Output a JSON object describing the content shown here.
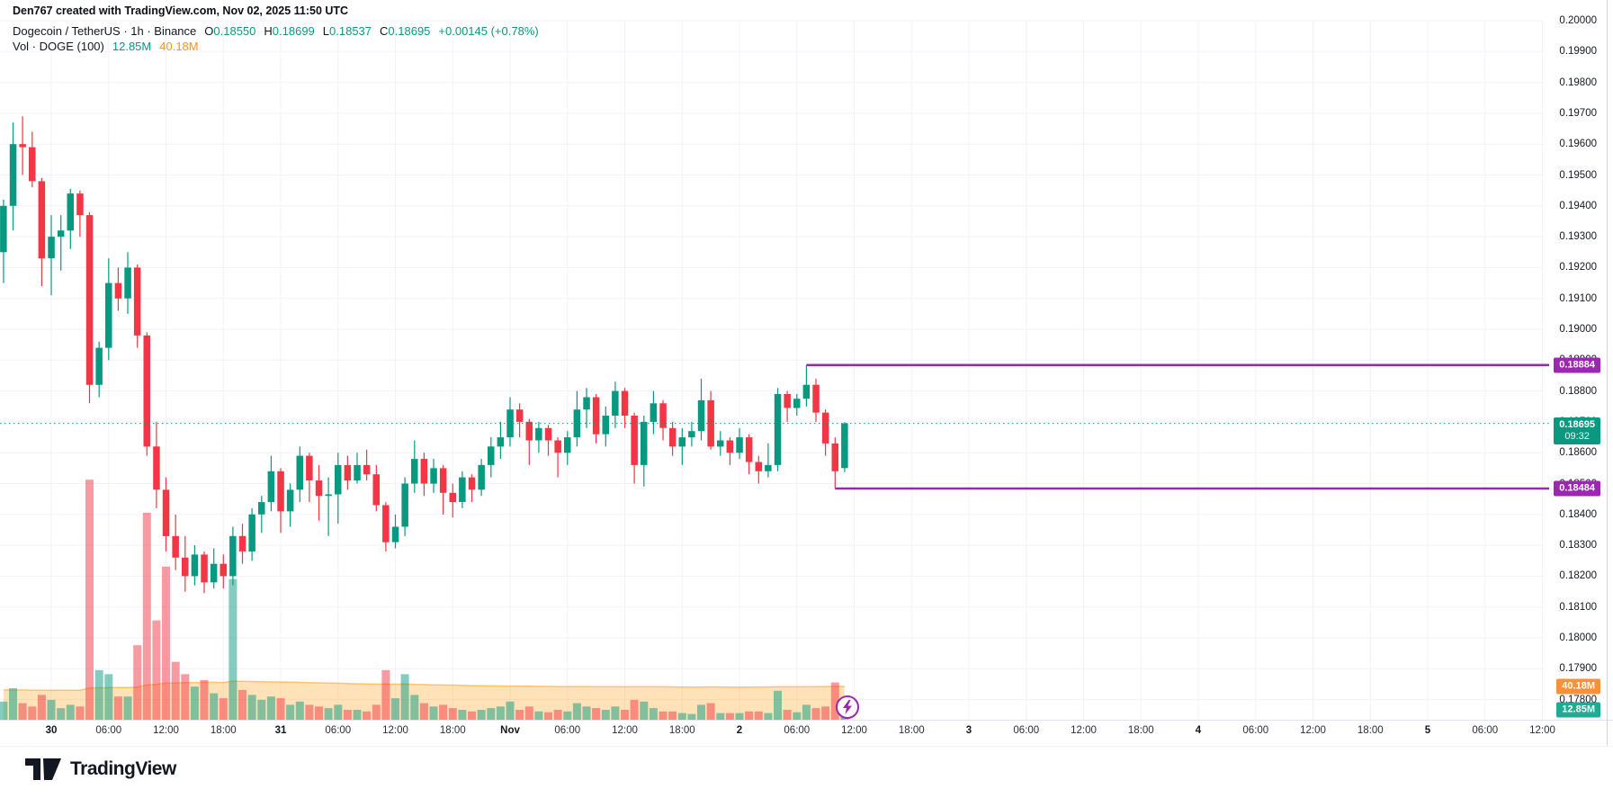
{
  "attribution": "Den767 created with TradingView.com, Nov 02, 2025 11:50 UTC",
  "legend": {
    "symbol": "Dogecoin / TetherUS · 1h · Binance",
    "ohlc": {
      "o_label": "O",
      "o": "0.18550",
      "h_label": "H",
      "h": "0.18699",
      "l_label": "L",
      "l": "0.18537",
      "c_label": "C",
      "c": "0.18695",
      "change": "+0.00145 (+0.78%)"
    },
    "volume_row": {
      "label": "Vol · DOGE (100)",
      "vol": "12.85M",
      "ma": "40.18M"
    }
  },
  "overlays": {
    "upper_label": "0.18884",
    "upper_price": 0.18884,
    "upper_from_candle": 84,
    "lower_label": "0.18484",
    "lower_price": 0.18484,
    "lower_from_candle": 87,
    "current_price_label": "0.18695",
    "countdown": "09:32",
    "vol_ma_label": "40.18M",
    "vol_label": "12.85M"
  },
  "logo": {
    "text": "TradingView"
  },
  "colors": {
    "up": "#089981",
    "down": "#F23645",
    "range_line": "#9c27b0",
    "vol_ma_fill": "rgba(255,152,0,0.28)",
    "vol_ma_edge": "rgba(255,152,0,0.5)",
    "vol_up": "rgba(8,153,129,0.5)",
    "vol_down": "rgba(242,54,69,0.5)",
    "grid": "#f0f3fa",
    "axis_line": "#e0e3eb",
    "current_line": "#089981"
  },
  "chart_data": {
    "type": "candlestick",
    "symbol": "Dogecoin / TetherUS",
    "exchange": "Binance",
    "interval": "1h",
    "title": "DOGE/USDT 1h candlestick chart with volume and MA(100)",
    "price_axis": {
      "ticks": [
        "0.20000",
        "0.19900",
        "0.19800",
        "0.19700",
        "0.19600",
        "0.19500",
        "0.19400",
        "0.19300",
        "0.19200",
        "0.19100",
        "0.19000",
        "0.18900",
        "0.18800",
        "0.18700",
        "0.18600",
        "0.18500",
        "0.18400",
        "0.18300",
        "0.18200",
        "0.18100",
        "0.18000",
        "0.17900",
        "0.17800"
      ],
      "min": 0.178,
      "max": 0.2
    },
    "time_axis": {
      "ticks": [
        {
          "label": "30",
          "major": true
        },
        {
          "label": "06:00",
          "major": false
        },
        {
          "label": "12:00",
          "major": false
        },
        {
          "label": "18:00",
          "major": false
        },
        {
          "label": "31",
          "major": true
        },
        {
          "label": "06:00",
          "major": false
        },
        {
          "label": "12:00",
          "major": false
        },
        {
          "label": "18:00",
          "major": false
        },
        {
          "label": "Nov",
          "major": true
        },
        {
          "label": "06:00",
          "major": false
        },
        {
          "label": "12:00",
          "major": false
        },
        {
          "label": "18:00",
          "major": false
        },
        {
          "label": "2",
          "major": true
        },
        {
          "label": "06:00",
          "major": false
        },
        {
          "label": "12:00",
          "major": false
        },
        {
          "label": "18:00",
          "major": false
        },
        {
          "label": "3",
          "major": true
        },
        {
          "label": "06:00",
          "major": false
        },
        {
          "label": "12:00",
          "major": false
        },
        {
          "label": "18:00",
          "major": false
        },
        {
          "label": "4",
          "major": true
        },
        {
          "label": "06:00",
          "major": false
        },
        {
          "label": "12:00",
          "major": false
        },
        {
          "label": "18:00",
          "major": false
        },
        {
          "label": "5",
          "major": true
        },
        {
          "label": "06:00",
          "major": false
        },
        {
          "label": "12:00",
          "major": false
        }
      ]
    },
    "current": {
      "price": 0.18695,
      "countdown": "09:32",
      "volume_m": 12.85,
      "vol_ma_m": 40.18
    },
    "candles": {
      "columns": [
        "time",
        "open",
        "high",
        "low",
        "close",
        "volume_m"
      ],
      "rows": [
        [
          "Oct29 19:00",
          0.1925,
          0.1942,
          0.1915,
          0.194,
          22
        ],
        [
          "Oct29 20:00",
          0.194,
          0.1967,
          0.1932,
          0.196,
          38
        ],
        [
          "Oct29 21:00",
          0.196,
          0.1969,
          0.195,
          0.1959,
          20
        ],
        [
          "Oct29 22:00",
          0.1959,
          0.1964,
          0.1946,
          0.1948,
          16
        ],
        [
          "Oct29 23:00",
          0.1948,
          0.1949,
          0.1914,
          0.1923,
          30
        ],
        [
          "Oct30 00:00",
          0.1923,
          0.1937,
          0.1911,
          0.193,
          24
        ],
        [
          "Oct30 01:00",
          0.193,
          0.1937,
          0.1919,
          0.1932,
          14
        ],
        [
          "Oct30 02:00",
          0.1932,
          0.19455,
          0.1926,
          0.1944,
          18
        ],
        [
          "Oct30 03:00",
          0.1944,
          0.1945,
          0.193,
          0.1937,
          16
        ],
        [
          "Oct30 04:00",
          0.1937,
          0.1938,
          0.1876,
          0.1882,
          290
        ],
        [
          "Oct30 05:00",
          0.1882,
          0.1896,
          0.1878,
          0.1894,
          60
        ],
        [
          "Oct30 06:00",
          0.1894,
          0.1923,
          0.189,
          0.1915,
          55
        ],
        [
          "Oct30 07:00",
          0.1915,
          0.192,
          0.1906,
          0.191,
          28
        ],
        [
          "Oct30 08:00",
          0.191,
          0.1925,
          0.1905,
          0.192,
          28
        ],
        [
          "Oct30 09:00",
          0.192,
          0.1921,
          0.1894,
          0.1898,
          90
        ],
        [
          "Oct30 10:00",
          0.1898,
          0.1899,
          0.1859,
          0.1862,
          250
        ],
        [
          "Oct30 11:00",
          0.1862,
          0.187,
          0.1842,
          0.1848,
          120
        ],
        [
          "Oct30 12:00",
          0.1848,
          0.1852,
          0.1828,
          0.1833,
          185
        ],
        [
          "Oct30 13:00",
          0.1833,
          0.184,
          0.1822,
          0.1826,
          70
        ],
        [
          "Oct30 14:00",
          0.1826,
          0.1833,
          0.1815,
          0.182,
          55
        ],
        [
          "Oct30 15:00",
          0.182,
          0.183,
          0.1817,
          0.1827,
          40
        ],
        [
          "Oct30 16:00",
          0.1827,
          0.1828,
          0.18145,
          0.1818,
          48
        ],
        [
          "Oct30 17:00",
          0.1818,
          0.1829,
          0.1816,
          0.1824,
          32
        ],
        [
          "Oct30 18:00",
          0.1824,
          0.1827,
          0.1816,
          0.182,
          26
        ],
        [
          "Oct30 19:00",
          0.182,
          0.1836,
          0.1817,
          0.1833,
          170
        ],
        [
          "Oct30 20:00",
          0.1833,
          0.1837,
          0.1824,
          0.1828,
          36
        ],
        [
          "Oct30 21:00",
          0.1828,
          0.1842,
          0.1825,
          0.184,
          30
        ],
        [
          "Oct30 22:00",
          0.184,
          0.1846,
          0.1834,
          0.1844,
          24
        ],
        [
          "Oct30 23:00",
          0.1844,
          0.1859,
          0.1841,
          0.1854,
          28
        ],
        [
          "Oct31 00:00",
          0.1854,
          0.1855,
          0.1834,
          0.1841,
          26
        ],
        [
          "Oct31 01:00",
          0.1841,
          0.185,
          0.1836,
          0.1848,
          18
        ],
        [
          "Oct31 02:00",
          0.1848,
          0.1862,
          0.1844,
          0.1859,
          22
        ],
        [
          "Oct31 03:00",
          0.1859,
          0.186,
          0.1844,
          0.1851,
          18
        ],
        [
          "Oct31 04:00",
          0.1851,
          0.1856,
          0.1838,
          0.1846,
          16
        ],
        [
          "Oct31 05:00",
          0.1846,
          0.1852,
          0.1833,
          0.18465,
          14
        ],
        [
          "Oct31 06:00",
          0.18465,
          0.186,
          0.1837,
          0.1856,
          18
        ],
        [
          "Oct31 07:00",
          0.1856,
          0.1859,
          0.1848,
          0.1851,
          12
        ],
        [
          "Oct31 08:00",
          0.1851,
          0.186,
          0.185,
          0.1856,
          12
        ],
        [
          "Oct31 09:00",
          0.1856,
          0.1861,
          0.1851,
          0.1853,
          10
        ],
        [
          "Oct31 10:00",
          0.1853,
          0.1856,
          0.1841,
          0.1843,
          18
        ],
        [
          "Oct31 11:00",
          0.1843,
          0.1844,
          0.1828,
          0.1831,
          60
        ],
        [
          "Oct31 12:00",
          0.1831,
          0.184,
          0.1829,
          0.1836,
          26
        ],
        [
          "Oct31 13:00",
          0.1836,
          0.1852,
          0.1833,
          0.185,
          55
        ],
        [
          "Oct31 14:00",
          0.185,
          0.1864,
          0.1847,
          0.1858,
          30
        ],
        [
          "Oct31 15:00",
          0.1858,
          0.186,
          0.1846,
          0.185,
          20
        ],
        [
          "Oct31 16:00",
          0.185,
          0.1858,
          0.1847,
          0.1855,
          16
        ],
        [
          "Oct31 17:00",
          0.1855,
          0.1856,
          0.184,
          0.1847,
          18
        ],
        [
          "Oct31 18:00",
          0.1847,
          0.185,
          0.1839,
          0.1844,
          14
        ],
        [
          "Oct31 19:00",
          0.1844,
          0.1854,
          0.1842,
          0.1852,
          12
        ],
        [
          "Oct31 20:00",
          0.1852,
          0.1853,
          0.1844,
          0.1848,
          10
        ],
        [
          "Oct31 21:00",
          0.1848,
          0.1858,
          0.1846,
          0.1856,
          12
        ],
        [
          "Oct31 22:00",
          0.1856,
          0.1865,
          0.1852,
          0.1862,
          14
        ],
        [
          "Oct31 23:00",
          0.1862,
          0.187,
          0.1858,
          0.1865,
          16
        ],
        [
          "Nov01 00:00",
          0.1865,
          0.1878,
          0.1862,
          0.1874,
          22
        ],
        [
          "Nov01 01:00",
          0.1874,
          0.1876,
          0.1865,
          0.187,
          12
        ],
        [
          "Nov01 02:00",
          0.187,
          0.1871,
          0.1856,
          0.1864,
          16
        ],
        [
          "Nov01 03:00",
          0.1864,
          0.187,
          0.186,
          0.1868,
          10
        ],
        [
          "Nov01 04:00",
          0.1868,
          0.1869,
          0.1859,
          0.1864,
          9
        ],
        [
          "Nov01 05:00",
          0.1864,
          0.1865,
          0.1852,
          0.186,
          12
        ],
        [
          "Nov01 06:00",
          0.186,
          0.1867,
          0.1856,
          0.1865,
          10
        ],
        [
          "Nov01 07:00",
          0.1865,
          0.188,
          0.1862,
          0.1874,
          20
        ],
        [
          "Nov01 08:00",
          0.1874,
          0.1881,
          0.1868,
          0.1878,
          16
        ],
        [
          "Nov01 09:00",
          0.1878,
          0.1879,
          0.1863,
          0.1866,
          14
        ],
        [
          "Nov01 10:00",
          0.1866,
          0.1875,
          0.1862,
          0.1872,
          12
        ],
        [
          "Nov01 11:00",
          0.1872,
          0.1883,
          0.1868,
          0.188,
          16
        ],
        [
          "Nov01 12:00",
          0.188,
          0.1881,
          0.1868,
          0.1872,
          12
        ],
        [
          "Nov01 13:00",
          0.1872,
          0.1873,
          0.185,
          0.1856,
          24
        ],
        [
          "Nov01 14:00",
          0.1856,
          0.1872,
          0.1849,
          0.187,
          22
        ],
        [
          "Nov01 15:00",
          0.187,
          0.188,
          0.1866,
          0.1876,
          14
        ],
        [
          "Nov01 16:00",
          0.1876,
          0.1877,
          0.1864,
          0.1868,
          10
        ],
        [
          "Nov01 17:00",
          0.1868,
          0.187,
          0.1859,
          0.1862,
          10
        ],
        [
          "Nov01 18:00",
          0.1862,
          0.1868,
          0.1856,
          0.1865,
          8
        ],
        [
          "Nov01 19:00",
          0.1865,
          0.187,
          0.1862,
          0.1867,
          7
        ],
        [
          "Nov01 20:00",
          0.1867,
          0.1884,
          0.1864,
          0.1877,
          18
        ],
        [
          "Nov01 21:00",
          0.1877,
          0.188,
          0.1861,
          0.1862,
          20
        ],
        [
          "Nov01 22:00",
          0.1862,
          0.1867,
          0.1859,
          0.1864,
          8
        ],
        [
          "Nov01 23:00",
          0.1864,
          0.1865,
          0.1856,
          0.186,
          8
        ],
        [
          "Nov02 00:00",
          0.186,
          0.1868,
          0.1858,
          0.1865,
          8
        ],
        [
          "Nov02 01:00",
          0.1865,
          0.1866,
          0.1853,
          0.1857,
          10
        ],
        [
          "Nov02 02:00",
          0.1857,
          0.1859,
          0.185,
          0.1854,
          10
        ],
        [
          "Nov02 03:00",
          0.1854,
          0.1863,
          0.1852,
          0.1856,
          8
        ],
        [
          "Nov02 04:00",
          0.1856,
          0.1881,
          0.1854,
          0.1879,
          35
        ],
        [
          "Nov02 05:00",
          0.1879,
          0.188,
          0.187,
          0.18745,
          12
        ],
        [
          "Nov02 06:00",
          0.18745,
          0.1879,
          0.1872,
          0.18775,
          9
        ],
        [
          "Nov02 07:00",
          0.18775,
          0.18884,
          0.1875,
          0.1882,
          18
        ],
        [
          "Nov02 08:00",
          0.1882,
          0.1884,
          0.187,
          0.1873,
          14
        ],
        [
          "Nov02 09:00",
          0.1873,
          0.1874,
          0.1859,
          0.1863,
          16
        ],
        [
          "Nov02 10:00",
          0.1863,
          0.1865,
          0.18484,
          0.1854,
          45
        ],
        [
          "Nov02 11:00",
          0.1855,
          0.18699,
          0.18537,
          0.18695,
          12.85
        ]
      ]
    },
    "vol_ma_m": [
      36,
      36,
      36,
      35.8,
      35.8,
      35.6,
      35.6,
      35.5,
      35.5,
      38.5,
      38.6,
      38.8,
      38.8,
      38.9,
      39.5,
      42,
      42.8,
      44.2,
      44.5,
      44.8,
      45,
      45.2,
      45.2,
      45,
      46.5,
      46.4,
      46.2,
      46,
      45.8,
      45.6,
      45.3,
      45.1,
      44.9,
      44.6,
      44.3,
      44.1,
      43.8,
      43.5,
      43.2,
      43,
      43.1,
      42.9,
      43,
      42.8,
      42.5,
      42.2,
      42,
      41.8,
      41.5,
      41.2,
      41,
      40.9,
      40.8,
      40.8,
      40.6,
      40.5,
      40.3,
      40.2,
      40.1,
      40,
      40.1,
      40.1,
      40,
      39.9,
      39.9,
      39.8,
      39.9,
      40,
      39.9,
      39.8,
      39.7,
      39.6,
      39.5,
      39.6,
      39.7,
      39.6,
      39.5,
      39.5,
      39.5,
      39.6,
      39.6,
      39.8,
      39.8,
      39.8,
      40,
      40,
      40.1,
      40.3,
      40.18
    ]
  }
}
